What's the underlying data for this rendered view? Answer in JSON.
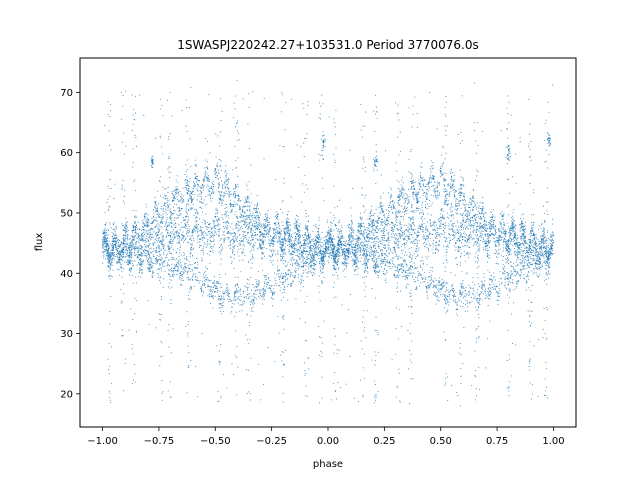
{
  "chart_data": {
    "type": "scatter",
    "title": "1SWASPJ220242.27+103531.0 Period 3770076.0s",
    "xlabel": "phase",
    "ylabel": "flux",
    "xlim": [
      -1.1,
      1.1
    ],
    "ylim": [
      14.5,
      75.7
    ],
    "xticks": [
      -1.0,
      -0.75,
      -0.5,
      -0.25,
      0.0,
      0.25,
      0.5,
      0.75,
      1.0
    ],
    "xtick_labels": [
      "−1.00",
      "−0.75",
      "−0.50",
      "−0.25",
      "0.00",
      "0.25",
      "0.50",
      "0.75",
      "1.00"
    ],
    "yticks": [
      20,
      30,
      40,
      50,
      60,
      70
    ],
    "ytick_labels": [
      "20",
      "30",
      "40",
      "50",
      "60",
      "70"
    ],
    "grid": false,
    "point_color": "#1f77b4",
    "profile": {
      "description_phase": [
        0.0,
        0.1,
        0.2,
        0.3,
        0.4,
        0.5,
        0.6,
        0.7,
        0.8,
        0.9,
        1.0
      ],
      "upper_branch": [
        44,
        45,
        48,
        51,
        54,
        55,
        52,
        48,
        46,
        45,
        44
      ],
      "lower_branch": [
        44,
        43,
        42,
        41,
        40,
        37,
        36,
        37,
        39,
        41,
        44
      ],
      "flat_band": [
        44,
        44.5,
        45,
        46,
        47,
        47,
        46,
        46,
        45.5,
        45,
        44
      ]
    },
    "series": [
      {
        "values": []
      }
    ]
  }
}
